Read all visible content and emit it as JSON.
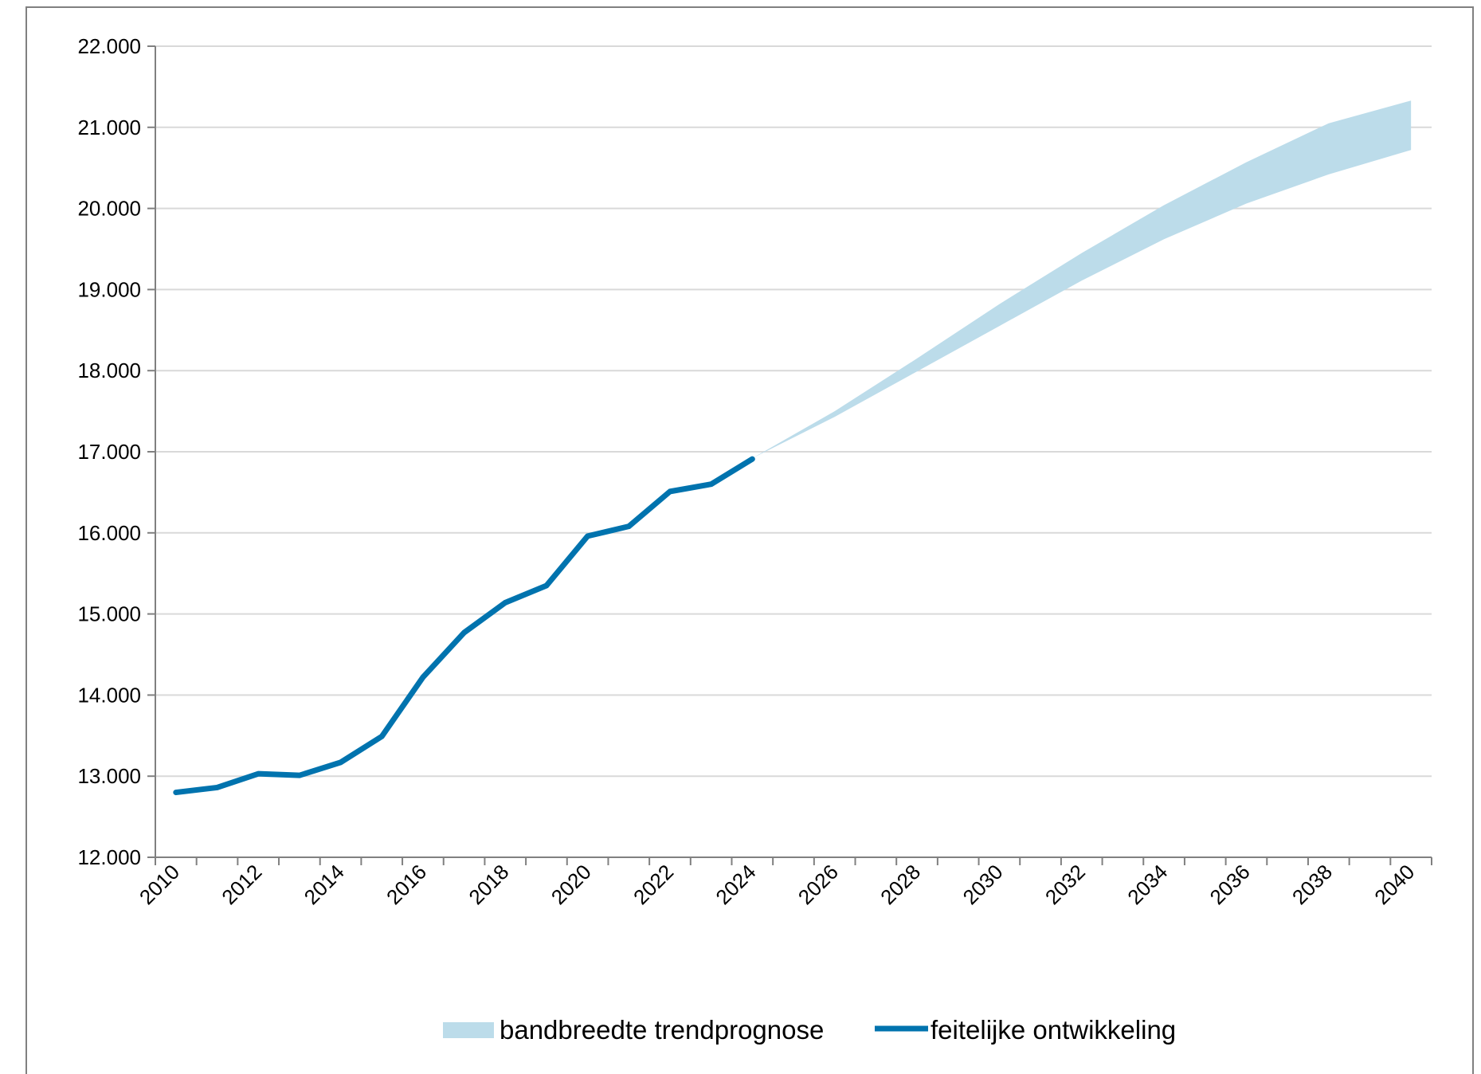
{
  "chart_data": {
    "type": "line",
    "title": "",
    "xlabel": "",
    "ylabel": "",
    "xlim": [
      2010,
      2040
    ],
    "ylim": [
      12000,
      22000
    ],
    "x_ticks": [
      "2010",
      "2012",
      "2014",
      "2016",
      "2018",
      "2020",
      "2022",
      "2024",
      "2026",
      "2028",
      "2030",
      "2032",
      "2034",
      "2036",
      "2038",
      "2040"
    ],
    "y_ticks": [
      "12.000",
      "13.000",
      "14.000",
      "15.000",
      "16.000",
      "17.000",
      "18.000",
      "19.000",
      "20.000",
      "21.000",
      "22.000"
    ],
    "grid": true,
    "legend_position": "bottom",
    "series": [
      {
        "name": "feitelijke ontwikkeling",
        "type": "line",
        "color": "#0073AE",
        "x": [
          2010,
          2011,
          2012,
          2013,
          2014,
          2015,
          2016,
          2017,
          2018,
          2019,
          2020,
          2021,
          2022,
          2023,
          2024
        ],
        "values": [
          12800,
          12860,
          13030,
          13010,
          13170,
          13490,
          14220,
          14770,
          15140,
          15350,
          15960,
          16080,
          16510,
          16600,
          16910
        ]
      },
      {
        "name": "bandbreedte trendprognose",
        "type": "band",
        "color": "#BCDCEA",
        "x": [
          2024,
          2026,
          2028,
          2030,
          2032,
          2034,
          2036,
          2038,
          2040
        ],
        "upper": [
          16920,
          17500,
          18150,
          18820,
          19450,
          20040,
          20570,
          21050,
          21330
        ],
        "lower": [
          16920,
          17430,
          17990,
          18550,
          19110,
          19620,
          20060,
          20420,
          20720
        ]
      }
    ]
  }
}
